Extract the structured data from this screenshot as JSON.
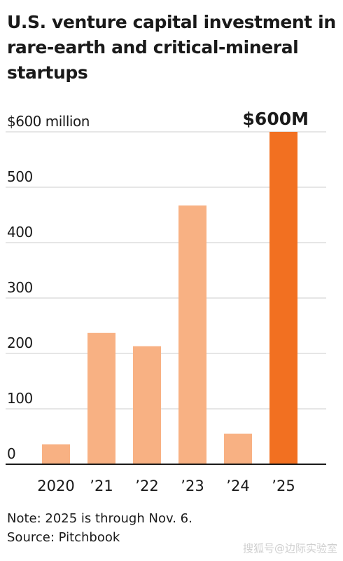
{
  "chart_data": {
    "type": "bar",
    "title": "U.S. venture capital investment in rare-earth and critical-mineral startups",
    "ylabel": "",
    "xlabel": "",
    "ylim": [
      0,
      600
    ],
    "yticks": [
      0,
      100,
      200,
      300,
      400,
      500,
      600
    ],
    "ytick_labels": [
      "0",
      "100",
      "200",
      "300",
      "400",
      "500",
      "$600 million"
    ],
    "categories": [
      "2020",
      "’21",
      "’22",
      "’23",
      "’24",
      "’25"
    ],
    "values": [
      36,
      237,
      213,
      467,
      55,
      600
    ],
    "colors": [
      "#f8b183",
      "#f8b183",
      "#f8b183",
      "#f8b183",
      "#f8b183",
      "#f27021"
    ],
    "annotations": [
      {
        "category": "’25",
        "text": "$600M"
      }
    ],
    "grid": true
  },
  "notes": {
    "note": "Note: 2025 is through Nov. 6.",
    "source": "Source: Pitchbook"
  },
  "watermark": "搜狐号@边际实验室",
  "colors": {
    "bar": "#f8b183",
    "highlight": "#f27021",
    "grid": "#cccccc",
    "axis": "#1a1a1a"
  }
}
